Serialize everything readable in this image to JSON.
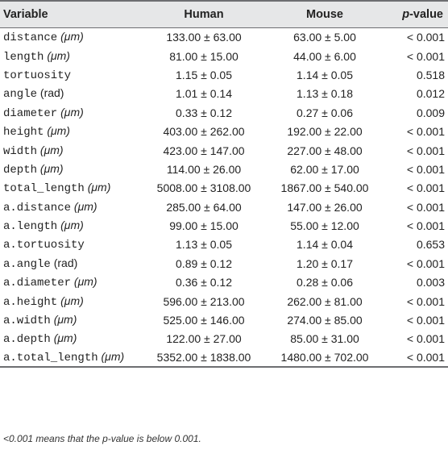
{
  "table": {
    "headers": [
      "Variable",
      "Human",
      "Mouse",
      "p-value"
    ],
    "header_pvalue_italic": "p",
    "header_pvalue_rest": "-value",
    "rows": [
      {
        "name": "distance",
        "unit": "(μm)",
        "unit_italic": true,
        "human": "133.00 ± 63.00",
        "mouse": "63.00 ± 5.00",
        "p": "< 0.001"
      },
      {
        "name": "length",
        "unit": "(μm)",
        "unit_italic": true,
        "human": "81.00 ± 15.00",
        "mouse": "44.00 ± 6.00",
        "p": "< 0.001"
      },
      {
        "name": "tortuosity",
        "unit": "",
        "unit_italic": false,
        "human": "1.15 ± 0.05",
        "mouse": "1.14 ± 0.05",
        "p": "0.518"
      },
      {
        "name": "angle",
        "unit": "(rad)",
        "unit_italic": false,
        "human": "1.01 ± 0.14",
        "mouse": "1.13 ± 0.18",
        "p": "0.012"
      },
      {
        "name": "diameter",
        "unit": "(μm)",
        "unit_italic": true,
        "human": "0.33 ± 0.12",
        "mouse": "0.27 ± 0.06",
        "p": "0.009"
      },
      {
        "name": "height",
        "unit": "(μm)",
        "unit_italic": true,
        "human": "403.00 ± 262.00",
        "mouse": "192.00 ± 22.00",
        "p": "< 0.001"
      },
      {
        "name": "width",
        "unit": "(μm)",
        "unit_italic": true,
        "human": "423.00 ± 147.00",
        "mouse": "227.00 ± 48.00",
        "p": "< 0.001"
      },
      {
        "name": "depth",
        "unit": "(μm)",
        "unit_italic": true,
        "human": "114.00 ± 26.00",
        "mouse": "62.00 ± 17.00",
        "p": "< 0.001"
      },
      {
        "name": "total_length",
        "unit": "(μm)",
        "unit_italic": true,
        "human": "5008.00 ± 3108.00",
        "mouse": "1867.00 ± 540.00",
        "p": "< 0.001"
      },
      {
        "name": "a.distance",
        "unit": "(μm)",
        "unit_italic": true,
        "human": "285.00 ± 64.00",
        "mouse": "147.00 ± 26.00",
        "p": "< 0.001"
      },
      {
        "name": "a.length",
        "unit": "(μm)",
        "unit_italic": true,
        "human": "99.00 ± 15.00",
        "mouse": "55.00 ± 12.00",
        "p": "< 0.001"
      },
      {
        "name": "a.tortuosity",
        "unit": "",
        "unit_italic": false,
        "human": "1.13 ± 0.05",
        "mouse": "1.14 ± 0.04",
        "p": "0.653"
      },
      {
        "name": "a.angle",
        "unit": "(rad)",
        "unit_italic": false,
        "human": "0.89 ± 0.12",
        "mouse": "1.20 ± 0.17",
        "p": "< 0.001"
      },
      {
        "name": "a.diameter",
        "unit": "(μm)",
        "unit_italic": true,
        "human": "0.36 ± 0.12",
        "mouse": "0.28 ± 0.06",
        "p": "0.003"
      },
      {
        "name": "a.height",
        "unit": "(μm)",
        "unit_italic": true,
        "human": "596.00 ± 213.00",
        "mouse": "262.00 ± 81.00",
        "p": "< 0.001"
      },
      {
        "name": "a.width",
        "unit": "(μm)",
        "unit_italic": true,
        "human": "525.00 ± 146.00",
        "mouse": "274.00 ± 85.00",
        "p": "< 0.001"
      },
      {
        "name": "a.depth",
        "unit": "(μm)",
        "unit_italic": true,
        "human": "122.00 ± 27.00",
        "mouse": "85.00 ± 31.00",
        "p": "< 0.001"
      },
      {
        "name": "a.total_length",
        "unit": "(μm)",
        "unit_italic": true,
        "human": "5352.00 ± 1838.00",
        "mouse": "1480.00 ± 702.00",
        "p": "< 0.001"
      }
    ]
  },
  "footnote": "<0.001 means that the p-value is below 0.001."
}
